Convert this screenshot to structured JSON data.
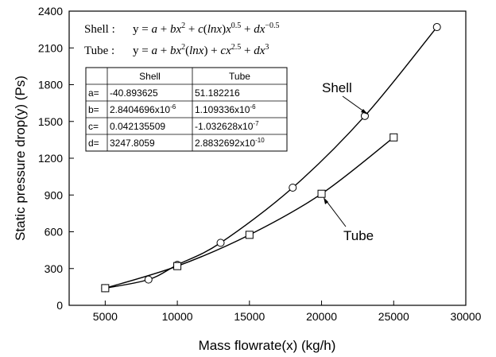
{
  "chart_data": {
    "type": "line",
    "xlabel": "Mass flowrate(x) (kg/h)",
    "ylabel": "Static pressure drop(y) (Ps)",
    "xlim": [
      2500,
      30000
    ],
    "ylim": [
      0,
      2400
    ],
    "xticks": [
      5000,
      10000,
      15000,
      20000,
      25000,
      30000
    ],
    "yticks": [
      0,
      300,
      600,
      900,
      1200,
      1500,
      1800,
      2100,
      2400
    ],
    "series": [
      {
        "name": "Shell",
        "marker": "circle",
        "x": [
          5000,
          8000,
          10000,
          13000,
          18000,
          23000,
          28000
        ],
        "y": [
          140,
          210,
          330,
          510,
          960,
          1545,
          2270
        ],
        "fit": {
          "a": -40.893625,
          "b": 2.8404696e-06,
          "c": 0.042135509,
          "d": 3247.8059
        }
      },
      {
        "name": "Tube",
        "marker": "square",
        "x": [
          5000,
          10000,
          15000,
          20000,
          25000
        ],
        "y": [
          140,
          320,
          575,
          910,
          1370
        ],
        "fit": {
          "a": 51.182216,
          "b": 1.109336e-06,
          "c": -1.032628e-07,
          "d": 2.8832692e-10
        }
      }
    ],
    "annotations": {
      "shell_label": "Shell",
      "tube_label": "Tube",
      "shell_eq_label": "Shell :",
      "shell_eq": "y = a + bx² + c(lnx)x^0.5 + dx^−0.5",
      "tube_eq_label": "Tube :",
      "tube_eq": "y = a + bx²(lnx) + cx^2.5 + dx³"
    },
    "coef_table": {
      "columns": [
        "",
        "Shell",
        "Tube"
      ],
      "rows": [
        {
          "k": "a=",
          "shell": "-40.893625",
          "tube": "51.182216"
        },
        {
          "k": "b=",
          "shell": "2.8404696x10",
          "shell_exp": "-6",
          "tube": "1.109336x10",
          "tube_exp": "-6"
        },
        {
          "k": "c=",
          "shell": "0.042135509",
          "tube": "-1.032628x10",
          "tube_exp": "-7"
        },
        {
          "k": "d=",
          "shell": "3247.8059",
          "tube": "2.8832692x10",
          "tube_exp": "-10"
        }
      ]
    }
  }
}
